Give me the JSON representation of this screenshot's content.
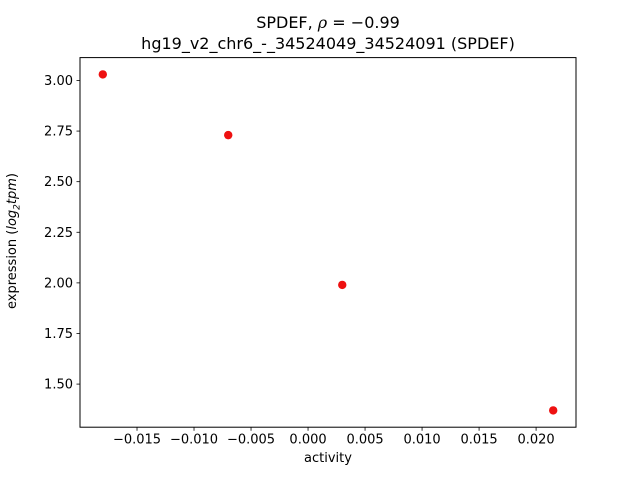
{
  "figure": {
    "title_line1": {
      "prefix": "SPDEF, ",
      "rho": "ρ",
      "suffix": " = −0.99"
    },
    "title_line2": "hg19_v2_chr6_-_34524049_34524091 (SPDEF)",
    "xlabel": "activity",
    "ylabel": {
      "prefix": "expression (",
      "log": "log",
      "sub": "2",
      "var": "tpm",
      "close": ")"
    }
  },
  "chart_data": {
    "type": "scatter",
    "title": "SPDEF, ρ = −0.99",
    "subtitle": "hg19_v2_chr6_-_34524049_34524091 (SPDEF)",
    "xlabel": "activity",
    "ylabel": "expression (log2 tpm)",
    "points": [
      {
        "x": -0.018,
        "y": 3.03
      },
      {
        "x": -0.007,
        "y": 2.73
      },
      {
        "x": 0.003,
        "y": 1.99
      },
      {
        "x": 0.0215,
        "y": 1.37
      }
    ],
    "marker_color": "#ee1111",
    "marker_radius": 4.2,
    "xlim": [
      -0.02,
      0.0235
    ],
    "ylim": [
      1.287,
      3.113
    ],
    "xticks": [
      -0.015,
      -0.01,
      -0.005,
      0.0,
      0.005,
      0.01,
      0.015,
      0.02
    ],
    "xtick_labels": [
      "−0.015",
      "−0.010",
      "−0.005",
      "0.000",
      "0.005",
      "0.010",
      "0.015",
      "0.020"
    ],
    "yticks": [
      1.5,
      1.75,
      2.0,
      2.25,
      2.5,
      2.75,
      3.0
    ],
    "ytick_labels": [
      "1.50",
      "1.75",
      "2.00",
      "2.25",
      "2.50",
      "2.75",
      "3.00"
    ],
    "grid": false,
    "legend": null,
    "axis_color": "#000000",
    "background_color": "#ffffff"
  }
}
